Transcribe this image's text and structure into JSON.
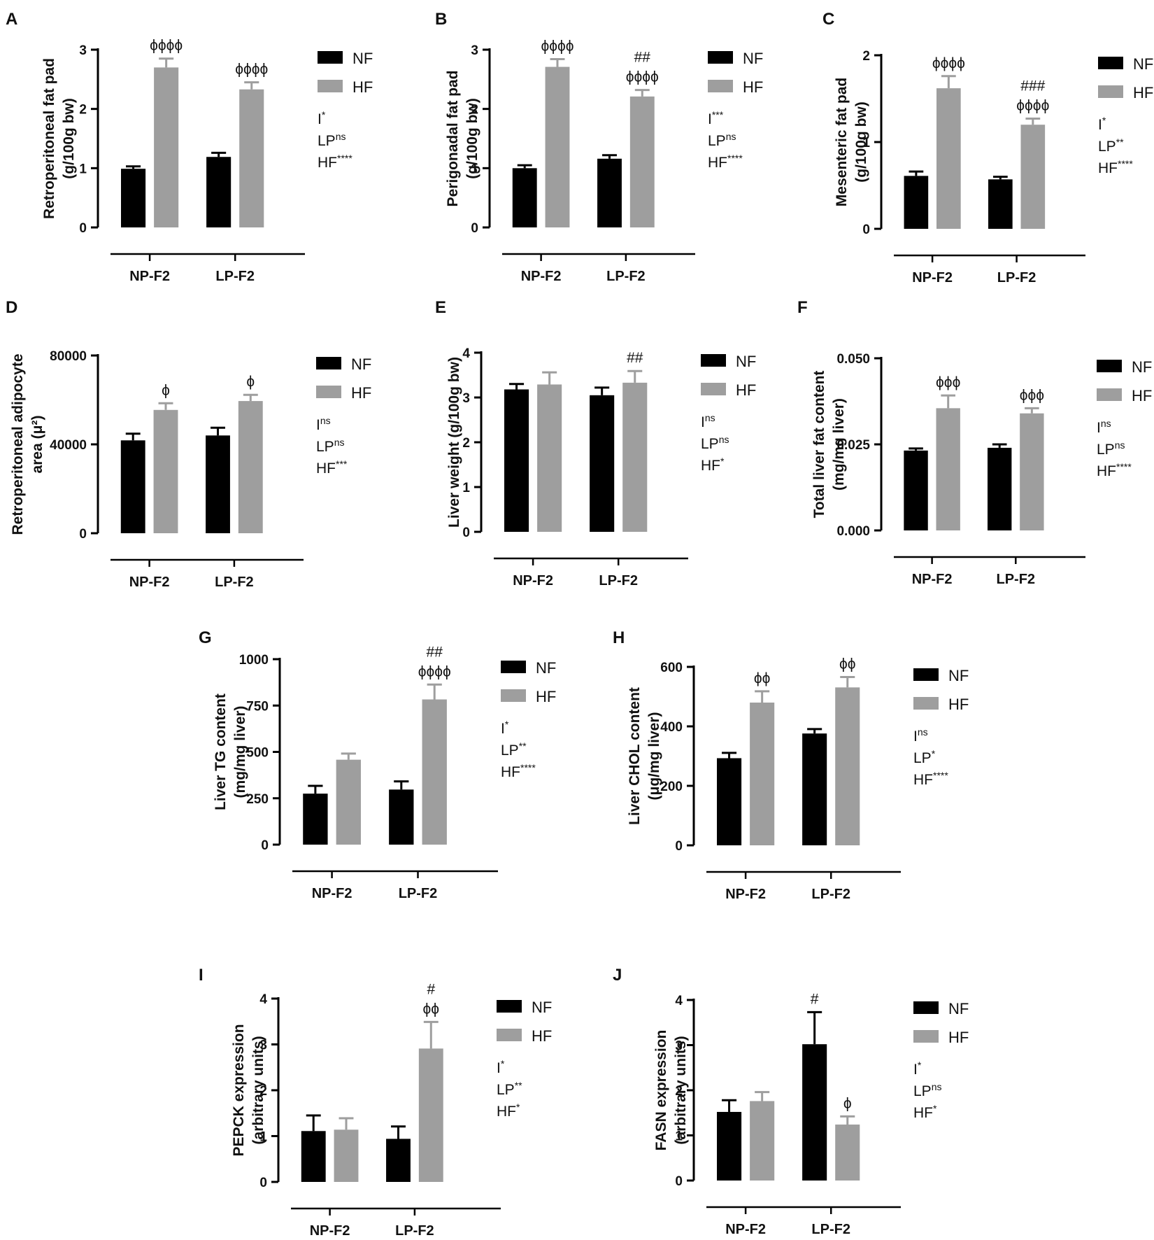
{
  "figure_title": "",
  "colors": {
    "nf": "#000000",
    "hf": "#9e9e9e",
    "axis": "#000000"
  },
  "chart_data": [
    {
      "panel": "A",
      "type": "bar",
      "ylabel": [
        "Retroperitoneal fat pad",
        "(g/100g bw)"
      ],
      "ylim": [
        0,
        3
      ],
      "yticks": [
        "0",
        "1",
        "2",
        "3"
      ],
      "categories": [
        "NP-F2",
        "LP-F2"
      ],
      "series": [
        {
          "name": "NF",
          "values": [
            0.99,
            1.19
          ],
          "errors": [
            0.04,
            0.07
          ]
        },
        {
          "name": "HF",
          "values": [
            2.7,
            2.33
          ],
          "errors": [
            0.15,
            0.12
          ]
        }
      ],
      "annotations": [
        {
          "category": 0,
          "series": 1,
          "lines": [
            "ϕϕϕϕ"
          ]
        },
        {
          "category": 1,
          "series": 1,
          "lines": [
            "ϕϕϕϕ"
          ]
        }
      ],
      "legend": [
        "NF",
        "HF"
      ],
      "stats": [
        {
          "base": "I",
          "sup": "*"
        },
        {
          "base": "LP",
          "sup": "ns"
        },
        {
          "base": "HF",
          "sup": "****"
        }
      ]
    },
    {
      "panel": "B",
      "type": "bar",
      "ylabel": [
        "Perigonadal fat pad",
        "(g/100g bw)"
      ],
      "ylim": [
        0,
        3
      ],
      "yticks": [
        "0",
        "1",
        "2",
        "3"
      ],
      "categories": [
        "NP-F2",
        "LP-F2"
      ],
      "series": [
        {
          "name": "NF",
          "values": [
            1.0,
            1.16
          ],
          "errors": [
            0.05,
            0.06
          ]
        },
        {
          "name": "HF",
          "values": [
            2.71,
            2.21
          ],
          "errors": [
            0.13,
            0.11
          ]
        }
      ],
      "annotations": [
        {
          "category": 0,
          "series": 1,
          "lines": [
            "ϕϕϕϕ"
          ]
        },
        {
          "category": 1,
          "series": 1,
          "lines": [
            "##",
            "ϕϕϕϕ"
          ]
        }
      ],
      "legend": [
        "NF",
        "HF"
      ],
      "stats": [
        {
          "base": "I",
          "sup": "***"
        },
        {
          "base": "LP",
          "sup": "ns"
        },
        {
          "base": "HF",
          "sup": "****"
        }
      ]
    },
    {
      "panel": "C",
      "type": "bar",
      "ylabel": [
        "Mesenteric fat pad",
        "(g/100g bw)"
      ],
      "ylim": [
        0,
        2
      ],
      "yticks": [
        "0",
        "1",
        "2"
      ],
      "categories": [
        "NP-F2",
        "LP-F2"
      ],
      "series": [
        {
          "name": "NF",
          "values": [
            0.61,
            0.57
          ],
          "errors": [
            0.05,
            0.03
          ]
        },
        {
          "name": "HF",
          "values": [
            1.62,
            1.2
          ],
          "errors": [
            0.14,
            0.07
          ]
        }
      ],
      "annotations": [
        {
          "category": 0,
          "series": 1,
          "lines": [
            "ϕϕϕϕ"
          ]
        },
        {
          "category": 1,
          "series": 1,
          "lines": [
            "###",
            "ϕϕϕϕ"
          ]
        }
      ],
      "legend": [
        "NF",
        "HF"
      ],
      "stats": [
        {
          "base": "I",
          "sup": "*"
        },
        {
          "base": "LP",
          "sup": "**"
        },
        {
          "base": "HF",
          "sup": "****"
        }
      ]
    },
    {
      "panel": "D",
      "type": "bar",
      "ylabel": [
        "Retroperitoneal adipocyte",
        "area (μ²)"
      ],
      "ylim": [
        0,
        80000
      ],
      "yticks": [
        "0",
        "40000",
        "80000"
      ],
      "categories": [
        "NP-F2",
        "LP-F2"
      ],
      "series": [
        {
          "name": "NF",
          "values": [
            41800,
            44000
          ],
          "errors": [
            3000,
            3500
          ]
        },
        {
          "name": "HF",
          "values": [
            55500,
            59500
          ],
          "errors": [
            3000,
            2800
          ]
        }
      ],
      "annotations": [
        {
          "category": 0,
          "series": 1,
          "lines": [
            "ϕ"
          ]
        },
        {
          "category": 1,
          "series": 1,
          "lines": [
            "ϕ"
          ]
        }
      ],
      "legend": [
        "NF",
        "HF"
      ],
      "stats": [
        {
          "base": "I",
          "sup": "ns"
        },
        {
          "base": "LP",
          "sup": "ns"
        },
        {
          "base": "HF",
          "sup": "***"
        }
      ]
    },
    {
      "panel": "E",
      "type": "bar",
      "ylabel": [
        "Liver weight (g/100g bw)"
      ],
      "ylim": [
        0,
        4
      ],
      "yticks": [
        "0",
        "1",
        "2",
        "3",
        "4"
      ],
      "categories": [
        "NP-F2",
        "LP-F2"
      ],
      "series": [
        {
          "name": "NF",
          "values": [
            3.18,
            3.05
          ],
          "errors": [
            0.12,
            0.17
          ]
        },
        {
          "name": "HF",
          "values": [
            3.29,
            3.33
          ],
          "errors": [
            0.27,
            0.26
          ]
        }
      ],
      "annotations": [
        {
          "category": 1,
          "series": 1,
          "lines": [
            "##"
          ]
        }
      ],
      "legend": [
        "NF",
        "HF"
      ],
      "stats": [
        {
          "base": "I",
          "sup": "ns"
        },
        {
          "base": "LP",
          "sup": "ns"
        },
        {
          "base": "HF",
          "sup": "*"
        }
      ]
    },
    {
      "panel": "F",
      "type": "bar",
      "ylabel": [
        "Total liver fat content",
        "(mg/mg liver)"
      ],
      "ylim": [
        0,
        0.05
      ],
      "yticks": [
        "0.000",
        "0.025",
        "0.050"
      ],
      "categories": [
        "NP-F2",
        "LP-F2"
      ],
      "series": [
        {
          "name": "NF",
          "values": [
            0.0232,
            0.024
          ],
          "errors": [
            0.0006,
            0.001
          ]
        },
        {
          "name": "HF",
          "values": [
            0.0355,
            0.034
          ],
          "errors": [
            0.0037,
            0.0015
          ]
        }
      ],
      "annotations": [
        {
          "category": 0,
          "series": 1,
          "lines": [
            "ϕϕϕ"
          ]
        },
        {
          "category": 1,
          "series": 1,
          "lines": [
            "ϕϕϕ"
          ]
        }
      ],
      "legend": [
        "NF",
        "HF"
      ],
      "stats": [
        {
          "base": "I",
          "sup": "ns"
        },
        {
          "base": "LP",
          "sup": "ns"
        },
        {
          "base": "HF",
          "sup": "****"
        }
      ]
    },
    {
      "panel": "G",
      "type": "bar",
      "ylabel": [
        "Liver TG content",
        "(mg/mg liver)"
      ],
      "ylim": [
        0,
        1000
      ],
      "yticks": [
        "0",
        "250",
        "500",
        "750",
        "1000"
      ],
      "categories": [
        "NP-F2",
        "LP-F2"
      ],
      "series": [
        {
          "name": "NF",
          "values": [
            275,
            297
          ],
          "errors": [
            42,
            44
          ]
        },
        {
          "name": "HF",
          "values": [
            458,
            783
          ],
          "errors": [
            33,
            80
          ]
        }
      ],
      "annotations": [
        {
          "category": 1,
          "series": 1,
          "lines": [
            "##",
            "ϕϕϕϕ"
          ]
        }
      ],
      "legend": [
        "NF",
        "HF"
      ],
      "stats": [
        {
          "base": "I",
          "sup": "*"
        },
        {
          "base": "LP",
          "sup": "**"
        },
        {
          "base": "HF",
          "sup": "****"
        }
      ]
    },
    {
      "panel": "H",
      "type": "bar",
      "ylabel": [
        "Liver CHOL content",
        "(μg/mg liver)"
      ],
      "ylim": [
        0,
        600
      ],
      "yticks": [
        "0",
        "200",
        "400",
        "600"
      ],
      "categories": [
        "NP-F2",
        "LP-F2"
      ],
      "series": [
        {
          "name": "NF",
          "values": [
            293,
            376
          ],
          "errors": [
            18,
            15
          ]
        },
        {
          "name": "HF",
          "values": [
            480,
            531
          ],
          "errors": [
            38,
            35
          ]
        }
      ],
      "annotations": [
        {
          "category": 0,
          "series": 1,
          "lines": [
            "ϕϕ"
          ]
        },
        {
          "category": 1,
          "series": 1,
          "lines": [
            "ϕϕ"
          ]
        }
      ],
      "legend": [
        "NF",
        "HF"
      ],
      "stats": [
        {
          "base": "I",
          "sup": "ns"
        },
        {
          "base": "LP",
          "sup": "*"
        },
        {
          "base": "HF",
          "sup": "****"
        }
      ]
    },
    {
      "panel": "I",
      "type": "bar",
      "ylabel": [
        "PEPCK expression",
        "(arbitrary units)"
      ],
      "ylim": [
        0,
        4
      ],
      "yticks": [
        "0",
        "1",
        "2",
        "3",
        "4"
      ],
      "categories": [
        "NP-F2",
        "LP-F2"
      ],
      "series": [
        {
          "name": "NF",
          "values": [
            1.11,
            0.94
          ],
          "errors": [
            0.34,
            0.27
          ]
        },
        {
          "name": "HF",
          "values": [
            1.14,
            2.91
          ],
          "errors": [
            0.25,
            0.58
          ]
        }
      ],
      "annotations": [
        {
          "category": 1,
          "series": 1,
          "lines": [
            "#",
            "ϕϕ"
          ]
        }
      ],
      "legend": [
        "NF",
        "HF"
      ],
      "stats": [
        {
          "base": "I",
          "sup": "*"
        },
        {
          "base": "LP",
          "sup": "**"
        },
        {
          "base": "HF",
          "sup": "*"
        }
      ]
    },
    {
      "panel": "J",
      "type": "bar",
      "ylabel": [
        "FASN expression",
        "(arbitrary units)"
      ],
      "ylim": [
        0,
        4
      ],
      "yticks": [
        "0",
        "1",
        "2",
        "3",
        "4"
      ],
      "categories": [
        "NP-F2",
        "LP-F2"
      ],
      "series": [
        {
          "name": "NF",
          "values": [
            1.52,
            3.02
          ],
          "errors": [
            0.26,
            0.71
          ]
        },
        {
          "name": "HF",
          "values": [
            1.76,
            1.24
          ],
          "errors": [
            0.2,
            0.18
          ]
        }
      ],
      "annotations": [
        {
          "category": 1,
          "series": 0,
          "lines": [
            "#"
          ]
        },
        {
          "category": 1,
          "series": 1,
          "lines": [
            "ϕ"
          ]
        }
      ],
      "legend": [
        "NF",
        "HF"
      ],
      "stats": [
        {
          "base": "I",
          "sup": "*"
        },
        {
          "base": "LP",
          "sup": "ns"
        },
        {
          "base": "HF",
          "sup": "*"
        }
      ]
    }
  ]
}
